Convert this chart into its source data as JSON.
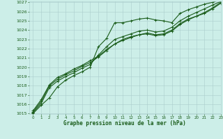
{
  "title": "Graphe pression niveau de la mer (hPa)",
  "background_color": "#cceee8",
  "grid_color": "#aacccc",
  "line_color": "#1a5c1a",
  "ylim": [
    1015,
    1027
  ],
  "xlim": [
    -0.5,
    23
  ],
  "yticks": [
    1015,
    1016,
    1017,
    1018,
    1019,
    1020,
    1021,
    1022,
    1023,
    1024,
    1025,
    1026,
    1027
  ],
  "xticks": [
    0,
    1,
    2,
    3,
    4,
    5,
    6,
    7,
    8,
    9,
    10,
    11,
    12,
    13,
    14,
    15,
    16,
    17,
    18,
    19,
    20,
    21,
    22,
    23
  ],
  "series": [
    [
      1015.0,
      1015.9,
      1016.7,
      1017.9,
      1018.6,
      1019.1,
      1019.5,
      1020.0,
      1022.2,
      1023.1,
      1024.8,
      1024.8,
      1025.0,
      1025.2,
      1025.3,
      1025.1,
      1025.0,
      1024.8,
      1025.8,
      1026.2,
      1026.5,
      1026.8,
      1027.0,
      1027.3
    ],
    [
      1015.1,
      1016.1,
      1017.8,
      1018.5,
      1019.0,
      1019.4,
      1019.9,
      1020.3,
      1021.3,
      1022.2,
      1023.0,
      1023.3,
      1023.6,
      1023.9,
      1024.0,
      1023.8,
      1023.9,
      1024.3,
      1025.0,
      1025.5,
      1025.9,
      1026.3,
      1026.7,
      1027.1
    ],
    [
      1015.2,
      1016.3,
      1018.0,
      1018.7,
      1019.2,
      1019.6,
      1020.1,
      1020.5,
      1021.1,
      1021.8,
      1022.5,
      1022.9,
      1023.2,
      1023.5,
      1023.6,
      1023.4,
      1023.5,
      1023.9,
      1024.6,
      1025.1,
      1025.5,
      1025.8,
      1026.3,
      1026.9
    ],
    [
      1015.3,
      1016.5,
      1018.1,
      1018.9,
      1019.3,
      1019.8,
      1020.2,
      1020.7,
      1021.2,
      1021.9,
      1022.5,
      1023.0,
      1023.3,
      1023.5,
      1023.7,
      1023.5,
      1023.6,
      1024.0,
      1024.7,
      1025.2,
      1025.5,
      1025.9,
      1026.4,
      1027.0
    ]
  ]
}
